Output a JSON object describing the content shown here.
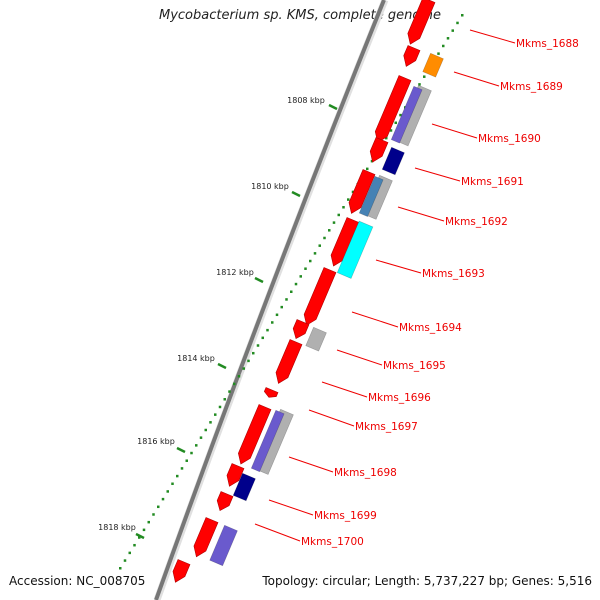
{
  "title": "Mycobacterium sp. KMS, complete genome",
  "accession": "Accession: NC_008705",
  "summary": "Topology: circular; Length: 5,737,227 bp; Genes: 5,516",
  "ruler_labels": [
    "1808 kbp",
    "1810 kbp",
    "1812 kbp",
    "1814 kbp",
    "1816 kbp",
    "1818 kbp"
  ],
  "gene_labels": [
    "Mkms_1688",
    "Mkms_1689",
    "Mkms_1690",
    "Mkms_1691",
    "Mkms_1692",
    "Mkms_1693",
    "Mkms_1694",
    "Mkms_1695",
    "Mkms_1696",
    "Mkms_1697",
    "Mkms_1698",
    "Mkms_1699",
    "Mkms_1700"
  ],
  "colors": {
    "cds": "#ff0000",
    "label": "#ee0000",
    "ruler_tick": "#228b22",
    "backbone": "#808080",
    "orange": "#ff8c00",
    "navy": "#00008b",
    "slate": "#6a5acd",
    "steel": "#4682b4",
    "cyan": "#00ffff",
    "grey": "#b0b0b0"
  }
}
